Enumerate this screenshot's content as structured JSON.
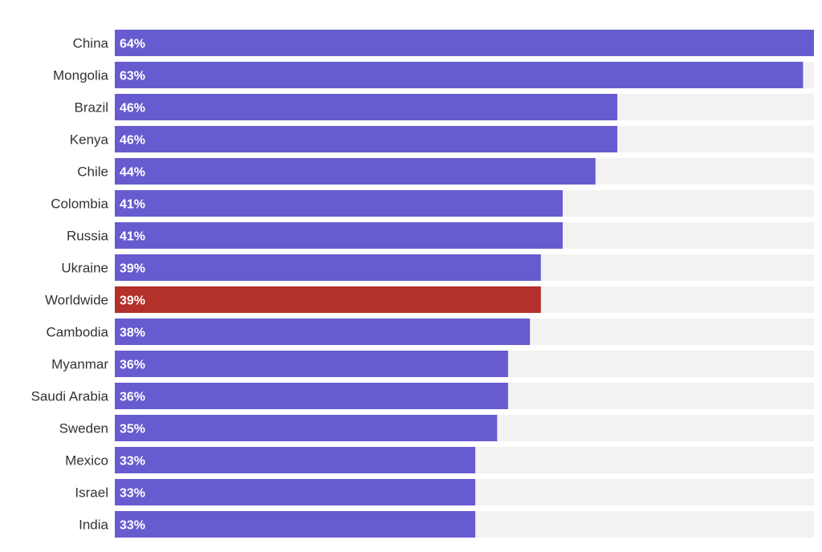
{
  "chart_data": {
    "type": "bar",
    "orientation": "horizontal",
    "categories": [
      "China",
      "Mongolia",
      "Brazil",
      "Kenya",
      "Chile",
      "Colombia",
      "Russia",
      "Ukraine",
      "Worldwide",
      "Cambodia",
      "Myanmar",
      "Saudi Arabia",
      "Sweden",
      "Mexico",
      "Israel",
      "India"
    ],
    "values": [
      64,
      63,
      46,
      46,
      44,
      41,
      41,
      39,
      39,
      38,
      36,
      36,
      35,
      33,
      33,
      33
    ],
    "value_labels": [
      "64%",
      "63%",
      "46%",
      "46%",
      "44%",
      "41%",
      "41%",
      "39%",
      "39%",
      "38%",
      "36%",
      "36%",
      "35%",
      "33%",
      "33%",
      "33%"
    ],
    "highlight": "Worldwide",
    "xlim": [
      0,
      64
    ],
    "grid": false,
    "legend": "none",
    "title": "",
    "xlabel": "",
    "ylabel": ""
  },
  "colors": {
    "bar": "#665ccf",
    "highlight": "#b3302b",
    "track": "#f2f2f2",
    "category_text": "#333333",
    "value_text": "#ffffff"
  }
}
